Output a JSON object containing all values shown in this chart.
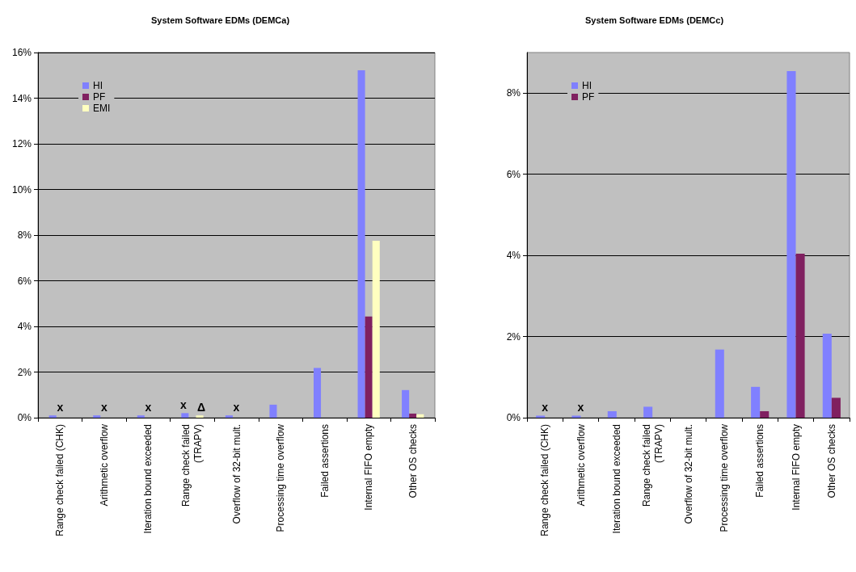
{
  "chart_data": [
    {
      "type": "bar",
      "title": "System Software EDMs (DEMCa)",
      "categories": [
        "Range check failed (CHK)",
        "Arithmetic overflow",
        "Iteration bound exceeded",
        "Range check failed\n(TRAPV)",
        "Overflow of 32-bit mult.",
        "Processing time overflow",
        "Failed assertions",
        "Internal FIFO empty",
        "Other OS checks"
      ],
      "series": [
        {
          "name": "HI",
          "color": "#8080ff",
          "values": [
            0.1,
            0.1,
            0.1,
            0.2,
            0.1,
            0.57,
            2.18,
            15.22,
            1.21
          ]
        },
        {
          "name": "PF",
          "color": "#802060",
          "values": [
            null,
            null,
            null,
            null,
            null,
            null,
            null,
            4.43,
            0.18
          ]
        },
        {
          "name": "EMI",
          "color": "#ffffc0",
          "values": [
            null,
            null,
            null,
            0.1,
            null,
            null,
            null,
            7.75,
            0.15
          ]
        }
      ],
      "ylim": [
        0,
        16
      ],
      "yticks": [
        {
          "value": 0,
          "label": "0%"
        },
        {
          "value": 2,
          "label": "2%"
        },
        {
          "value": 4,
          "label": "4%"
        },
        {
          "value": 6,
          "label": "6%"
        },
        {
          "value": 8,
          "label": "8%"
        },
        {
          "value": 10,
          "label": "10%"
        },
        {
          "value": 12,
          "label": "12%"
        },
        {
          "value": 14,
          "label": "14%"
        },
        {
          "value": 16,
          "label": "16%"
        }
      ],
      "grid": "y",
      "legend": "top left",
      "annotations": [
        {
          "text": "x",
          "x": "Range check failed (CHK)",
          "y": 0.1
        },
        {
          "text": "x",
          "x": "Arithmetic overflow",
          "y": 0.1
        },
        {
          "text": "x",
          "x": "Iteration bound exceeded",
          "y": 0.1
        },
        {
          "text": "x",
          "x": "Range check failed\n(TRAPV)",
          "y": 0.2
        },
        {
          "text": "Δ",
          "x": "Range check failed\n(TRAPV)",
          "y": 0.1
        },
        {
          "text": "x",
          "x": "Overflow of 32-bit mult.",
          "y": 0.1
        }
      ]
    },
    {
      "type": "bar",
      "title": "System Software EDMs (DEMCc)",
      "categories": [
        "Range check failed (CHK)",
        "Arithmetic overflow",
        "Iteration bound exceeded",
        "Range check failed\n(TRAPV)",
        "Overflow of 32-bit mult.",
        "Processing time overflow",
        "Failed assertions",
        "Internal FIFO empty",
        "Other OS checks"
      ],
      "series": [
        {
          "name": "HI",
          "color": "#8080ff",
          "values": [
            0.05,
            0.05,
            0.16,
            0.27,
            null,
            1.68,
            0.76,
            8.54,
            2.07
          ]
        },
        {
          "name": "PF",
          "color": "#802060",
          "values": [
            null,
            null,
            null,
            null,
            null,
            null,
            0.16,
            4.04,
            0.49
          ]
        }
      ],
      "ylim": [
        0,
        9
      ],
      "yticks": [
        {
          "value": 0,
          "label": "0%"
        },
        {
          "value": 2,
          "label": "2%"
        },
        {
          "value": 4,
          "label": "4%"
        },
        {
          "value": 6,
          "label": "6%"
        },
        {
          "value": 8,
          "label": "8%"
        }
      ],
      "grid": "y",
      "legend": "top left",
      "annotations": [
        {
          "text": "x",
          "x": "Range check failed (CHK)",
          "y": 0.05
        },
        {
          "text": "x",
          "x": "Arithmetic overflow",
          "y": 0.05
        }
      ]
    }
  ]
}
